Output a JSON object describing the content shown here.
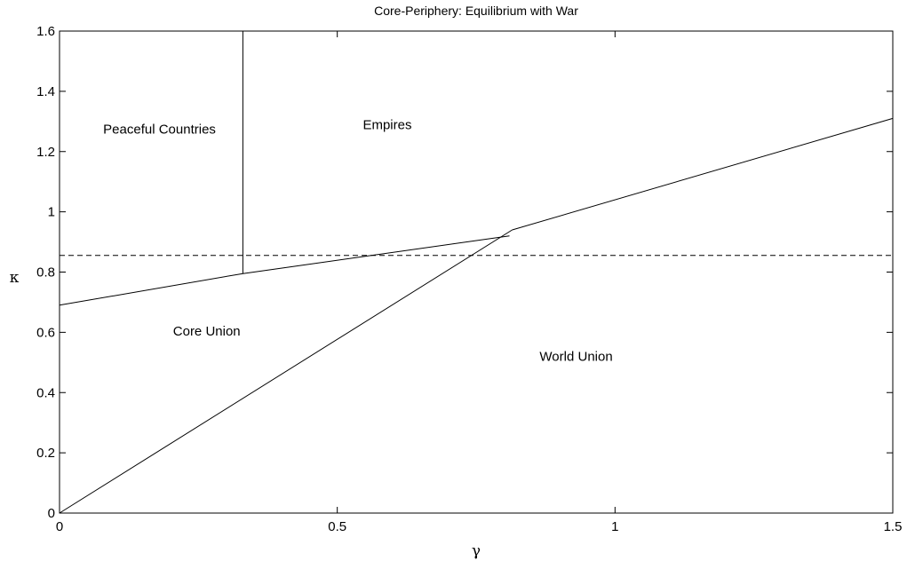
{
  "chart_data": {
    "type": "line",
    "title": "Core-Periphery: Equilibrium with War",
    "xlabel": "γ",
    "ylabel": "κ",
    "xlim": [
      0,
      1.5
    ],
    "ylim": [
      0,
      1.6
    ],
    "xticks": [
      0,
      0.5,
      1,
      1.5
    ],
    "xtick_labels": [
      "0",
      "0.5",
      "1",
      "1.5"
    ],
    "yticks": [
      0,
      0.2,
      0.4,
      0.6,
      0.8,
      1.0,
      1.2,
      1.4,
      1.6
    ],
    "ytick_labels": [
      "0",
      "0.2",
      "0.4",
      "0.6",
      "0.8",
      "1",
      "1.2",
      "1.4",
      "1.6"
    ],
    "grid": false,
    "series": [
      {
        "points": [
          [
            0,
            0.69
          ],
          [
            0.33,
            0.795
          ],
          [
            0.81,
            0.92
          ]
        ],
        "style": "solid"
      },
      {
        "points": [
          [
            0,
            0
          ],
          [
            0.815,
            0.94
          ]
        ],
        "style": "solid"
      },
      {
        "points": [
          [
            0.815,
            0.94
          ],
          [
            1.5,
            1.31
          ]
        ],
        "style": "solid"
      },
      {
        "points": [
          [
            0.33,
            0.795
          ],
          [
            0.33,
            1.6
          ]
        ],
        "style": "solid"
      },
      {
        "points": [
          [
            0,
            0.855
          ],
          [
            1.5,
            0.855
          ]
        ],
        "style": "dashed"
      }
    ],
    "annotations": [
      {
        "text": "Peaceful Countries",
        "x": 0.18,
        "y": 1.26
      },
      {
        "text": "Empires",
        "x": 0.59,
        "y": 1.275
      },
      {
        "text": "Core Union",
        "x": 0.265,
        "y": 0.59
      },
      {
        "text": "World Union",
        "x": 0.93,
        "y": 0.505
      }
    ]
  }
}
